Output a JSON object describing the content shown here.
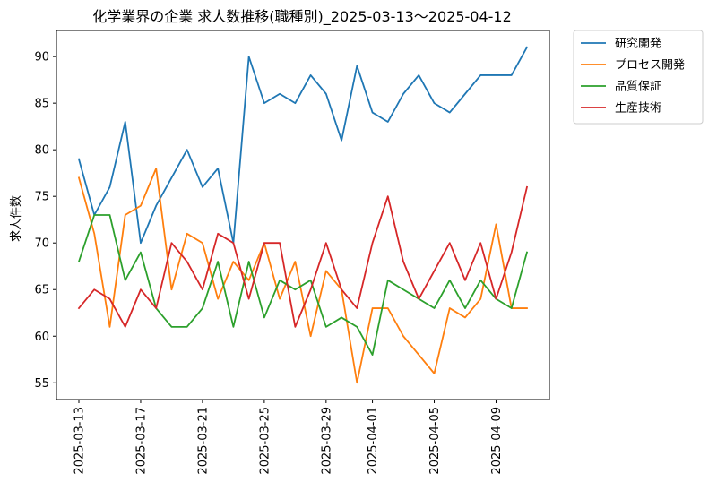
{
  "chart_data": {
    "type": "line",
    "title": "化学業界の企業 求人数推移(職種別)_2025-03-13〜2025-04-12",
    "xlabel": "",
    "ylabel": "求人件数",
    "x": [
      "2025-03-13",
      "2025-03-14",
      "2025-03-15",
      "2025-03-16",
      "2025-03-17",
      "2025-03-18",
      "2025-03-19",
      "2025-03-20",
      "2025-03-21",
      "2025-03-22",
      "2025-03-23",
      "2025-03-24",
      "2025-03-25",
      "2025-03-26",
      "2025-03-27",
      "2025-03-28",
      "2025-03-29",
      "2025-03-30",
      "2025-03-31",
      "2025-04-01",
      "2025-04-02",
      "2025-04-03",
      "2025-04-04",
      "2025-04-05",
      "2025-04-06",
      "2025-04-07",
      "2025-04-08",
      "2025-04-09",
      "2025-04-10",
      "2025-04-11"
    ],
    "x_ticks": [
      "2025-03-13",
      "2025-03-17",
      "2025-03-21",
      "2025-03-25",
      "2025-03-29",
      "2025-04-01",
      "2025-04-05",
      "2025-04-09"
    ],
    "y_ticks": [
      55,
      60,
      65,
      70,
      75,
      80,
      85,
      90
    ],
    "ylim": [
      53.2,
      92.8
    ],
    "grid": false,
    "legend_position": "outside-top-right",
    "series": [
      {
        "name": "研究開発",
        "color": "#1f77b4",
        "values": [
          79,
          73,
          76,
          83,
          70,
          74,
          77,
          80,
          76,
          78,
          70,
          90,
          85,
          86,
          85,
          88,
          86,
          81,
          89,
          84,
          83,
          86,
          88,
          85,
          84,
          86,
          88,
          88,
          88,
          91
        ]
      },
      {
        "name": "プロセス開発",
        "color": "#ff7f0e",
        "values": [
          77,
          71,
          61,
          73,
          74,
          78,
          65,
          71,
          70,
          64,
          68,
          66,
          70,
          64,
          68,
          60,
          67,
          65,
          55,
          63,
          63,
          60,
          58,
          56,
          63,
          62,
          64,
          72,
          63,
          63
        ]
      },
      {
        "name": "品質保証",
        "color": "#2ca02c",
        "values": [
          68,
          73,
          73,
          66,
          69,
          63,
          61,
          61,
          63,
          68,
          61,
          68,
          62,
          66,
          65,
          66,
          61,
          62,
          61,
          58,
          66,
          65,
          64,
          63,
          66,
          63,
          66,
          64,
          63,
          69
        ]
      },
      {
        "name": "生産技術",
        "color": "#d62728",
        "values": [
          63,
          65,
          64,
          61,
          65,
          63,
          70,
          68,
          65,
          71,
          70,
          64,
          70,
          70,
          61,
          65,
          70,
          65,
          63,
          70,
          75,
          68,
          64,
          67,
          70,
          66,
          70,
          64,
          69,
          76
        ]
      }
    ]
  }
}
